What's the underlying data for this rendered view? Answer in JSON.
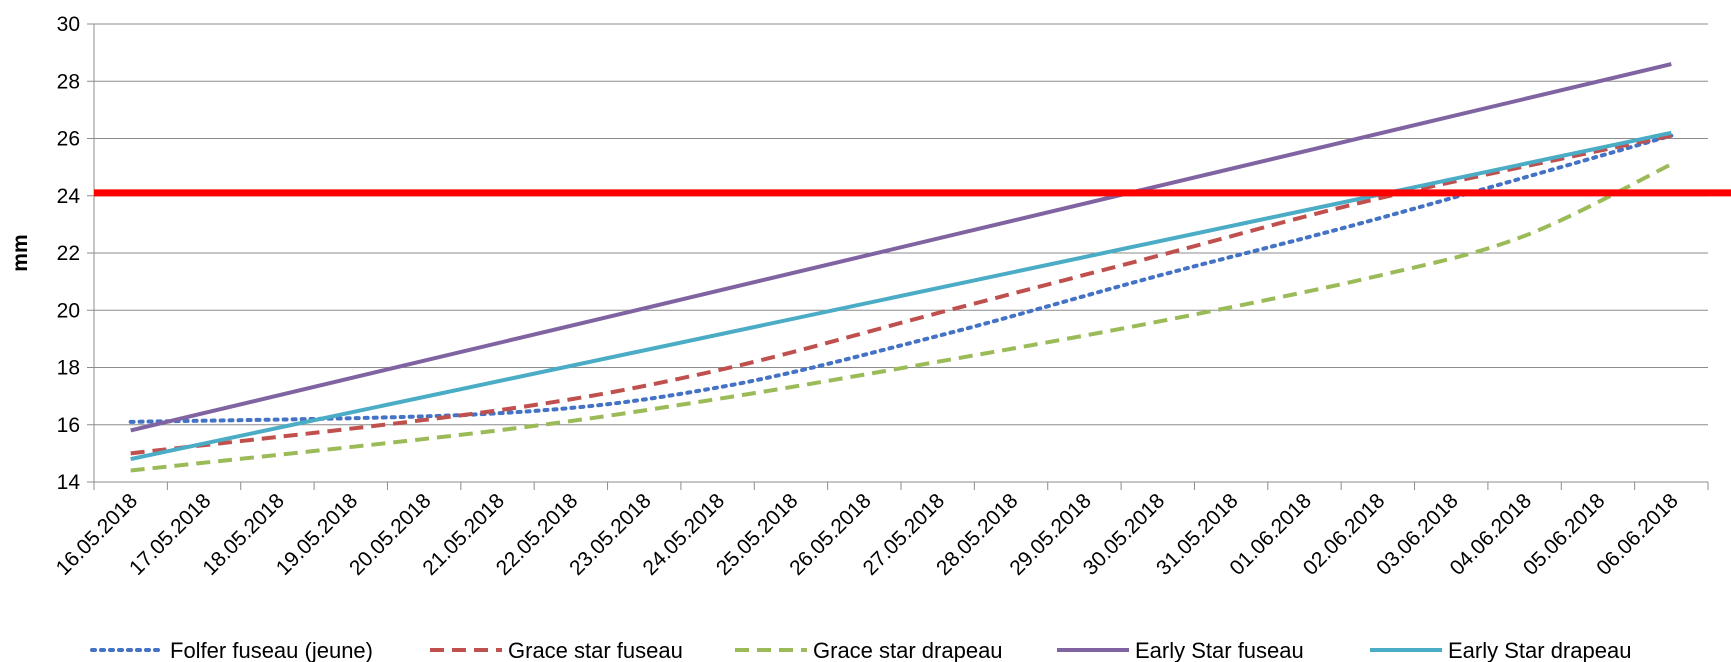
{
  "chart_data": {
    "type": "line",
    "title": "",
    "xlabel": "",
    "ylabel": "mm",
    "ylim": [
      14,
      30
    ],
    "yticks": [
      "14",
      "16",
      "18",
      "20",
      "22",
      "24",
      "26",
      "28",
      "30"
    ],
    "grid": true,
    "legend_position": "bottom",
    "categories": [
      "16.05.2018",
      "17.05.2018",
      "18.05.2018",
      "19.05.2018",
      "20.05.2018",
      "21.05.2018",
      "22.05.2018",
      "23.05.2018",
      "24.05.2018",
      "25.05.2018",
      "26.05.2018",
      "27.05.2018",
      "28.05.2018",
      "29.05.2018",
      "30.05.2018",
      "31.05.2018",
      "01.06.2018",
      "02.06.2018",
      "03.06.2018",
      "04.06.2018",
      "05.06.2018",
      "06.06.2018"
    ],
    "reference_line": {
      "value": 24.1,
      "color": "#ff0000"
    },
    "series": [
      {
        "name": "Folfer fuseau (jeune)",
        "color": "#4472c4",
        "style": "dotted",
        "points": [
          [
            "16.05.2018",
            16.1
          ],
          [
            "21.05.2018",
            16.4
          ],
          [
            "24.05.2018",
            17.3
          ],
          [
            "27.05.2018",
            19.1
          ],
          [
            "30.05.2018",
            21.2
          ],
          [
            "02.06.2018",
            23.2
          ],
          [
            "06.06.2018",
            26.1
          ]
        ]
      },
      {
        "name": "Grace star fuseau",
        "color": "#c0504d",
        "style": "dashed",
        "points": [
          [
            "16.05.2018",
            15.0
          ],
          [
            "21.05.2018",
            16.5
          ],
          [
            "24.05.2018",
            17.9
          ],
          [
            "27.05.2018",
            19.9
          ],
          [
            "30.05.2018",
            21.9
          ],
          [
            "02.06.2018",
            23.9
          ],
          [
            "06.06.2018",
            26.1
          ]
        ]
      },
      {
        "name": "Grace star drapeau",
        "color": "#9bbb59",
        "style": "dashed",
        "points": [
          [
            "16.05.2018",
            14.4
          ],
          [
            "21.05.2018",
            15.8
          ],
          [
            "24.05.2018",
            16.9
          ],
          [
            "27.05.2018",
            18.2
          ],
          [
            "30.05.2018",
            19.6
          ],
          [
            "02.06.2018",
            21.2
          ],
          [
            "04.06.2018",
            22.6
          ],
          [
            "06.06.2018",
            25.1
          ]
        ]
      },
      {
        "name": "Early Star fuseau",
        "color": "#8064a2",
        "style": "solid",
        "points": [
          [
            "16.05.2018",
            15.8
          ],
          [
            "06.06.2018",
            28.6
          ]
        ]
      },
      {
        "name": "Early Star drapeau",
        "color": "#4bacc6",
        "style": "solid",
        "points": [
          [
            "16.05.2018",
            14.8
          ],
          [
            "06.06.2018",
            26.2
          ]
        ]
      }
    ]
  }
}
